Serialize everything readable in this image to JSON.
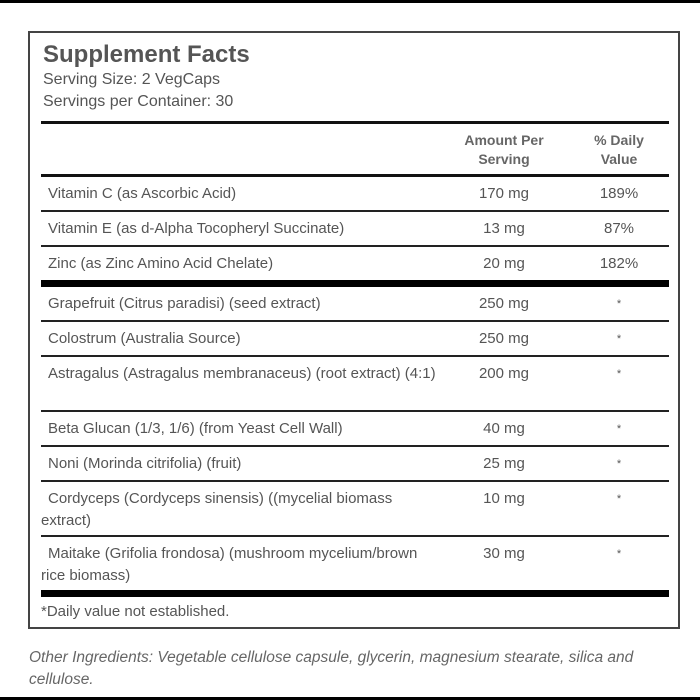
{
  "label": {
    "title": "Supplement Facts",
    "serving_size": "Serving Size: 2 VegCaps",
    "servings_per_container": "Servings per Container: 30"
  },
  "table": {
    "headers": {
      "amount_line1": "Amount Per",
      "amount_line2": "Serving",
      "dv_line1": "% Daily",
      "dv_line2": "Value"
    },
    "vitamins": [
      {
        "name": "Vitamin C (as Ascorbic Acid)",
        "amount": "170 mg",
        "dv": "189%"
      },
      {
        "name": "Vitamin E (as d-Alpha Tocopheryl Succinate)",
        "amount": "13 mg",
        "dv": "87%"
      },
      {
        "name": "Zinc (as Zinc Amino Acid Chelate)",
        "amount": "20 mg",
        "dv": "182%"
      }
    ],
    "ingredients": [
      {
        "name": "Grapefruit (Citrus paradisi) (seed extract)",
        "amount": "250 mg",
        "dv": "*"
      },
      {
        "name": "Colostrum (Australia Source)",
        "amount": "250 mg",
        "dv": "*"
      },
      {
        "name": "Astragalus (Astragalus membranaceus) (root extract) (4:1)",
        "amount": "200 mg",
        "dv": "*"
      },
      {
        "name": "Beta Glucan (1/3, 1/6) (from Yeast Cell Wall)",
        "amount": "40 mg",
        "dv": "*"
      },
      {
        "name": "Noni (Morinda citrifolia) (fruit)",
        "amount": "25 mg",
        "dv": "*"
      },
      {
        "name": "Cordyceps (Cordyceps sinensis) ((mycelial biomass extract)",
        "amount": "10 mg",
        "dv": "*"
      },
      {
        "name": "Maitake (Grifolia frondosa) (mushroom mycelium/brown rice biomass)",
        "amount": "30 mg",
        "dv": "*"
      }
    ],
    "footnote": "*Daily value not established."
  },
  "other_ingredients": "Other Ingredients: Vegetable cellulose capsule, glycerin, magnesium stearate, silica and cellulose."
}
